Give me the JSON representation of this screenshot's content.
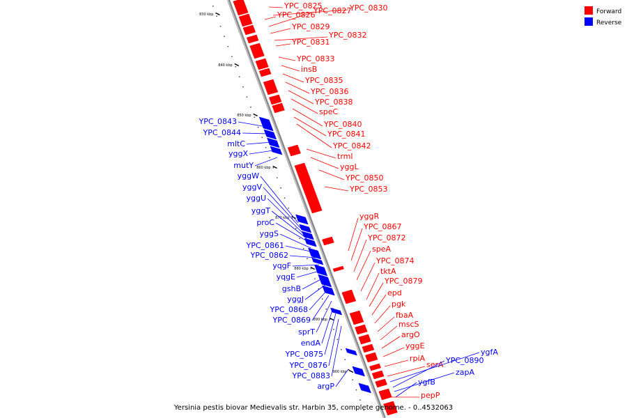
{
  "caption": "Yersinia pestis biovar Medievalis str. Harbin 35, complete genome. - 0..4532063",
  "legend": [
    {
      "label": "Forward",
      "color": "#ff0000"
    },
    {
      "label": "Reverse",
      "color": "#0000ff"
    }
  ],
  "colors": {
    "forward": "#ff0000",
    "reverse": "#0000ff",
    "axis": "#888888"
  },
  "ticks": [
    "830 kbp",
    "840 kbp",
    "850 kbp",
    "860 kbp",
    "870 kbp",
    "880 kbp",
    "890 kbp",
    "900 kbp"
  ],
  "forward_genes": [
    "YPC_0825",
    "YPC_0826",
    "YPC_0827",
    "YPC_0830",
    "YPC_0829",
    "YPC_0832",
    "YPC_0831",
    "YPC_0833",
    "insB",
    "YPC_0835",
    "YPC_0836",
    "YPC_0838",
    "speC",
    "YPC_0840",
    "YPC_0841",
    "YPC_0842",
    "trmI",
    "yggL",
    "YPC_0850",
    "YPC_0853",
    "yggR",
    "YPC_0867",
    "YPC_0872",
    "speA",
    "YPC_0874",
    "tktA",
    "YPC_0879",
    "epd",
    "pgk",
    "fbaA",
    "mscS",
    "argO",
    "yggE",
    "rpiA",
    "serA",
    "pepP"
  ],
  "reverse_genes": [
    "YPC_0843",
    "YPC_0844",
    "mltC",
    "yggX",
    "mutY",
    "yggW",
    "yggV",
    "yggU",
    "yggT",
    "proC",
    "yggS",
    "YPC_0861",
    "YPC_0862",
    "yqgF",
    "yqgE",
    "gshB",
    "yggJ",
    "YPC_0868",
    "YPC_0869",
    "sprT",
    "endA",
    "YPC_0875",
    "YPC_0876",
    "YPC_0883",
    "argP",
    "ygfA",
    "YPC_0890",
    "zapA",
    "ygfB"
  ]
}
